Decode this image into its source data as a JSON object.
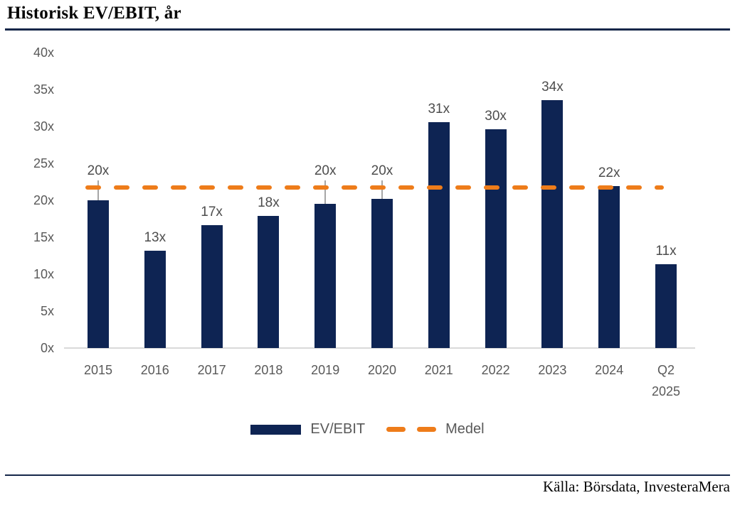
{
  "page": {
    "title": "Historisk EV/EBIT, år",
    "source": "Källa: Börsdata, InvesteraMera"
  },
  "legend": {
    "series_label": "EV/EBIT",
    "average_label": "Medel"
  },
  "colors": {
    "bar": "#0E2453",
    "average_line": "#EE7C1A",
    "tick_text": "#595959",
    "data_label_text": "#4D4D4D",
    "rule": "#152749",
    "axis_line": "#D9D9D9",
    "leader_line": "#A6A6A6"
  },
  "chart_data": {
    "type": "bar",
    "title": "Historisk EV/EBIT, år",
    "value_suffix": "x",
    "categories": [
      "2015",
      "2016",
      "2017",
      "2018",
      "2019",
      "2020",
      "2021",
      "2022",
      "2023",
      "2024",
      "Q2 2025"
    ],
    "values": [
      20.0,
      13.2,
      16.6,
      17.9,
      19.5,
      20.2,
      30.6,
      29.6,
      33.6,
      21.9,
      11.3
    ],
    "data_labels": [
      "20x",
      "13x",
      "17x",
      "18x",
      "20x",
      "20x",
      "31x",
      "30x",
      "34x",
      "22x",
      "11x"
    ],
    "label_leader_lines": [
      true,
      false,
      false,
      false,
      true,
      true,
      false,
      false,
      false,
      false,
      false
    ],
    "average_line": {
      "label": "Medel",
      "value": 22.2,
      "style": "dashed",
      "color": "#EE7C1A"
    },
    "series": [
      {
        "name": "EV/EBIT",
        "type": "bar",
        "color": "#0E2453"
      },
      {
        "name": "Medel",
        "type": "dashed-line",
        "color": "#EE7C1A"
      }
    ],
    "y_axis": {
      "ylim": [
        0,
        40
      ],
      "tick_labels": [
        "0x",
        "5x",
        "10x",
        "15x",
        "20x",
        "25x",
        "30x",
        "35x",
        "40x"
      ],
      "tick_values": [
        0,
        5,
        10,
        15,
        20,
        25,
        30,
        35,
        40
      ]
    },
    "grid": false,
    "legend_position": "bottom"
  }
}
